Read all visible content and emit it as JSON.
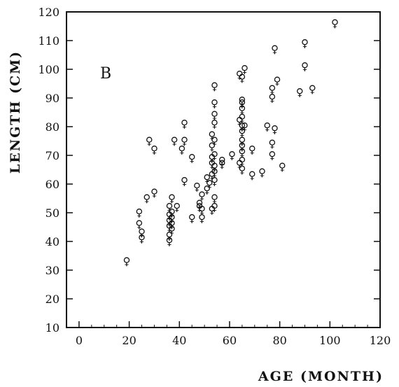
{
  "chart_data": {
    "type": "scatter",
    "panel_label": "B",
    "marker_symbol": "♀",
    "xlabel": "AGE (MONTH)",
    "ylabel": "LENGTH (CM)",
    "xlim": [
      -5,
      120
    ],
    "ylim": [
      10,
      120
    ],
    "xticks": [
      0,
      20,
      40,
      60,
      80,
      100,
      120
    ],
    "yticks": [
      10,
      20,
      30,
      40,
      50,
      60,
      70,
      80,
      90,
      100,
      110,
      120
    ],
    "grid": false,
    "points": [
      {
        "x": 19,
        "y": 33
      },
      {
        "x": 24,
        "y": 46
      },
      {
        "x": 24,
        "y": 50
      },
      {
        "x": 25,
        "y": 41
      },
      {
        "x": 25,
        "y": 43
      },
      {
        "x": 27,
        "y": 55
      },
      {
        "x": 28,
        "y": 75
      },
      {
        "x": 30,
        "y": 72
      },
      {
        "x": 30,
        "y": 57
      },
      {
        "x": 36,
        "y": 40
      },
      {
        "x": 36,
        "y": 42
      },
      {
        "x": 36,
        "y": 45
      },
      {
        "x": 36,
        "y": 47
      },
      {
        "x": 36,
        "y": 49
      },
      {
        "x": 36,
        "y": 52
      },
      {
        "x": 37,
        "y": 44
      },
      {
        "x": 37,
        "y": 46
      },
      {
        "x": 37,
        "y": 48
      },
      {
        "x": 37,
        "y": 50
      },
      {
        "x": 37,
        "y": 55
      },
      {
        "x": 38,
        "y": 75
      },
      {
        "x": 39,
        "y": 52
      },
      {
        "x": 41,
        "y": 72
      },
      {
        "x": 42,
        "y": 75
      },
      {
        "x": 42,
        "y": 81
      },
      {
        "x": 42,
        "y": 61
      },
      {
        "x": 45,
        "y": 48
      },
      {
        "x": 45,
        "y": 69
      },
      {
        "x": 47,
        "y": 59
      },
      {
        "x": 48,
        "y": 52
      },
      {
        "x": 48,
        "y": 53
      },
      {
        "x": 49,
        "y": 48
      },
      {
        "x": 49,
        "y": 51
      },
      {
        "x": 49,
        "y": 56
      },
      {
        "x": 51,
        "y": 62
      },
      {
        "x": 51,
        "y": 58
      },
      {
        "x": 52,
        "y": 60
      },
      {
        "x": 53,
        "y": 51
      },
      {
        "x": 53,
        "y": 63
      },
      {
        "x": 53,
        "y": 67
      },
      {
        "x": 53,
        "y": 69
      },
      {
        "x": 53,
        "y": 73
      },
      {
        "x": 53,
        "y": 77
      },
      {
        "x": 54,
        "y": 52
      },
      {
        "x": 54,
        "y": 55
      },
      {
        "x": 54,
        "y": 61
      },
      {
        "x": 54,
        "y": 64
      },
      {
        "x": 54,
        "y": 66
      },
      {
        "x": 54,
        "y": 70
      },
      {
        "x": 54,
        "y": 75
      },
      {
        "x": 54,
        "y": 81
      },
      {
        "x": 54,
        "y": 84
      },
      {
        "x": 54,
        "y": 88
      },
      {
        "x": 54,
        "y": 94
      },
      {
        "x": 57,
        "y": 67
      },
      {
        "x": 57,
        "y": 68
      },
      {
        "x": 61,
        "y": 70
      },
      {
        "x": 64,
        "y": 67
      },
      {
        "x": 64,
        "y": 82
      },
      {
        "x": 64,
        "y": 98
      },
      {
        "x": 65,
        "y": 65
      },
      {
        "x": 65,
        "y": 68
      },
      {
        "x": 65,
        "y": 71
      },
      {
        "x": 65,
        "y": 73
      },
      {
        "x": 65,
        "y": 75
      },
      {
        "x": 65,
        "y": 78
      },
      {
        "x": 65,
        "y": 80
      },
      {
        "x": 65,
        "y": 83
      },
      {
        "x": 65,
        "y": 86
      },
      {
        "x": 65,
        "y": 88
      },
      {
        "x": 65,
        "y": 89
      },
      {
        "x": 65,
        "y": 97
      },
      {
        "x": 66,
        "y": 100
      },
      {
        "x": 66,
        "y": 80
      },
      {
        "x": 69,
        "y": 63
      },
      {
        "x": 69,
        "y": 72
      },
      {
        "x": 73,
        "y": 64
      },
      {
        "x": 75,
        "y": 80
      },
      {
        "x": 77,
        "y": 70
      },
      {
        "x": 77,
        "y": 74
      },
      {
        "x": 77,
        "y": 90
      },
      {
        "x": 77,
        "y": 93
      },
      {
        "x": 78,
        "y": 79
      },
      {
        "x": 78,
        "y": 107
      },
      {
        "x": 79,
        "y": 96
      },
      {
        "x": 81,
        "y": 66
      },
      {
        "x": 88,
        "y": 92
      },
      {
        "x": 90,
        "y": 101
      },
      {
        "x": 90,
        "y": 109
      },
      {
        "x": 93,
        "y": 93
      },
      {
        "x": 102,
        "y": 116
      }
    ]
  }
}
